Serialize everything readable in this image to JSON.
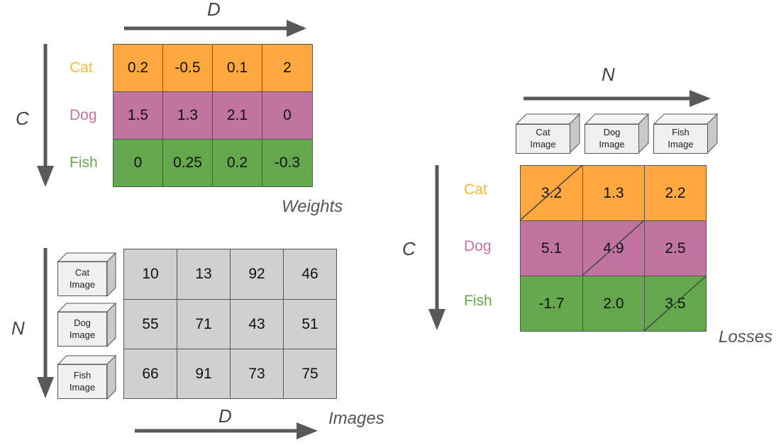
{
  "weights": {
    "caption": "Weights",
    "row_axis_label": "C",
    "col_axis_label": "D",
    "rows": [
      {
        "label": "Cat",
        "color": "#ffa83f",
        "label_color": "#f5b93a",
        "values": [
          "0.2",
          "-0.5",
          "0.1",
          "2"
        ]
      },
      {
        "label": "Dog",
        "color": "#c0749f",
        "label_color": "#c0749f",
        "values": [
          "1.5",
          "1.3",
          "2.1",
          "0"
        ]
      },
      {
        "label": "Fish",
        "color": "#65a74c",
        "label_color": "#65a74c",
        "values": [
          "0",
          "0.25",
          "0.2",
          "-0.3"
        ]
      }
    ]
  },
  "images": {
    "caption": "Images",
    "row_axis_label": "N",
    "col_axis_label": "D",
    "cell_color": "#d0d0d0",
    "rows": [
      {
        "cube_line1": "Cat",
        "cube_line2": "Image",
        "values": [
          "10",
          "13",
          "92",
          "46"
        ]
      },
      {
        "cube_line1": "Dog",
        "cube_line2": "Image",
        "values": [
          "55",
          "71",
          "43",
          "51"
        ]
      },
      {
        "cube_line1": "Fish",
        "cube_line2": "Image",
        "values": [
          "66",
          "91",
          "73",
          "75"
        ]
      }
    ]
  },
  "losses": {
    "caption": "Losses",
    "row_axis_label": "C",
    "col_axis_label": "N",
    "columns": [
      {
        "cube_line1": "Cat",
        "cube_line2": "Image"
      },
      {
        "cube_line1": "Dog",
        "cube_line2": "Image"
      },
      {
        "cube_line1": "Fish",
        "cube_line2": "Image"
      }
    ],
    "rows": [
      {
        "label": "Cat",
        "color": "#ffa83f",
        "label_color": "#f5b93a",
        "values": [
          "3.2",
          "1.3",
          "2.2"
        ]
      },
      {
        "label": "Dog",
        "color": "#c0749f",
        "label_color": "#c0749f",
        "values": [
          "5.1",
          "4.9",
          "2.5"
        ]
      },
      {
        "label": "Fish",
        "color": "#65a74c",
        "label_color": "#65a74c",
        "values": [
          "-1.7",
          "2.0",
          "3.5"
        ]
      }
    ]
  },
  "colors": {
    "arrow": "#595959",
    "grid_border": "#555555"
  }
}
